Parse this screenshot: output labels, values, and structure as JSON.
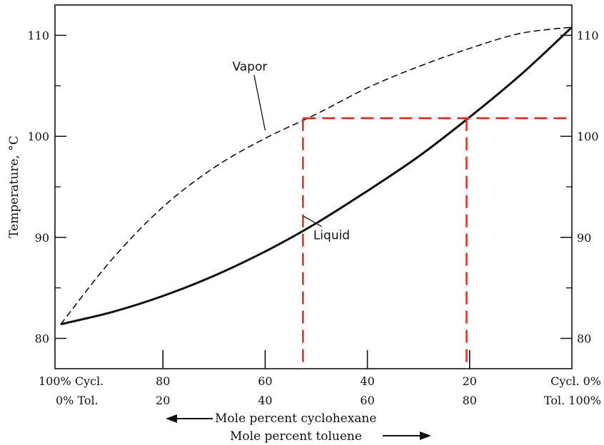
{
  "chart_data": {
    "type": "line",
    "xlabel_primary": "Mole percent cyclohexane",
    "xlabel_secondary": "Mole percent toluene",
    "ylabel": "Temperature, °C",
    "xlim": [
      100,
      0
    ],
    "ylim": [
      77,
      113
    ],
    "y_ticks_left": [
      "80",
      "90",
      "100",
      "110"
    ],
    "y_ticks_right": [
      "80",
      "90",
      "100",
      "110"
    ],
    "y_tick_values": [
      80,
      90,
      100,
      110
    ],
    "x_tick_values": [
      80,
      60,
      40,
      20
    ],
    "x_ticks_cyclohexane": [
      "100% Cycl.",
      "80",
      "60",
      "40",
      "20",
      "Cycl. 0%"
    ],
    "x_ticks_toluene": [
      "0% Tol.",
      "20",
      "40",
      "60",
      "80",
      "Tol. 100%"
    ],
    "series": [
      {
        "name": "Vapor",
        "style": "dashed",
        "x": [
          100,
          90,
          80,
          70,
          60,
          50,
          40,
          30,
          20,
          10,
          0
        ],
        "y": [
          81.4,
          87.8,
          93.0,
          96.9,
          99.8,
          102.2,
          104.8,
          106.9,
          108.7,
          110.2,
          110.8
        ]
      },
      {
        "name": "Liquid",
        "style": "solid",
        "x": [
          100,
          90,
          80,
          70,
          60,
          50,
          40,
          30,
          20,
          10,
          0
        ],
        "y": [
          81.4,
          82.6,
          84.2,
          86.2,
          88.6,
          91.4,
          94.6,
          98.0,
          101.9,
          106.1,
          110.8
        ]
      }
    ],
    "annotations": [
      {
        "text": "Vapor",
        "x": 63,
        "y": 106.5,
        "target": [
          60,
          100.6
        ]
      },
      {
        "text": "Liquid",
        "x": 47,
        "y": 89.8,
        "target": [
          52.5,
          92.1
        ]
      }
    ],
    "tie_line": {
      "temperature": 101.8,
      "vapor_x": 52.6,
      "liquid_x": 20.6,
      "color": "#e8301c"
    },
    "grid": false,
    "legend": "none"
  }
}
